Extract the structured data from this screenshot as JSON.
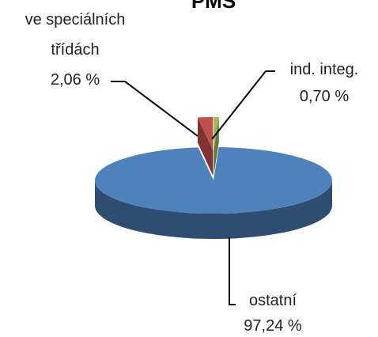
{
  "chart_data": {
    "type": "pie",
    "title": "PMS",
    "three_d": true,
    "categories": [
      "ve speciálních třídách",
      "ind. integ.",
      "ostatní"
    ],
    "values": [
      2.06,
      0.7,
      97.24
    ],
    "value_labels": [
      "2,06 %",
      "0,70 %",
      "97,24 %"
    ],
    "colors": [
      "#c0504d",
      "#9bbb59",
      "#4f81bd"
    ]
  }
}
